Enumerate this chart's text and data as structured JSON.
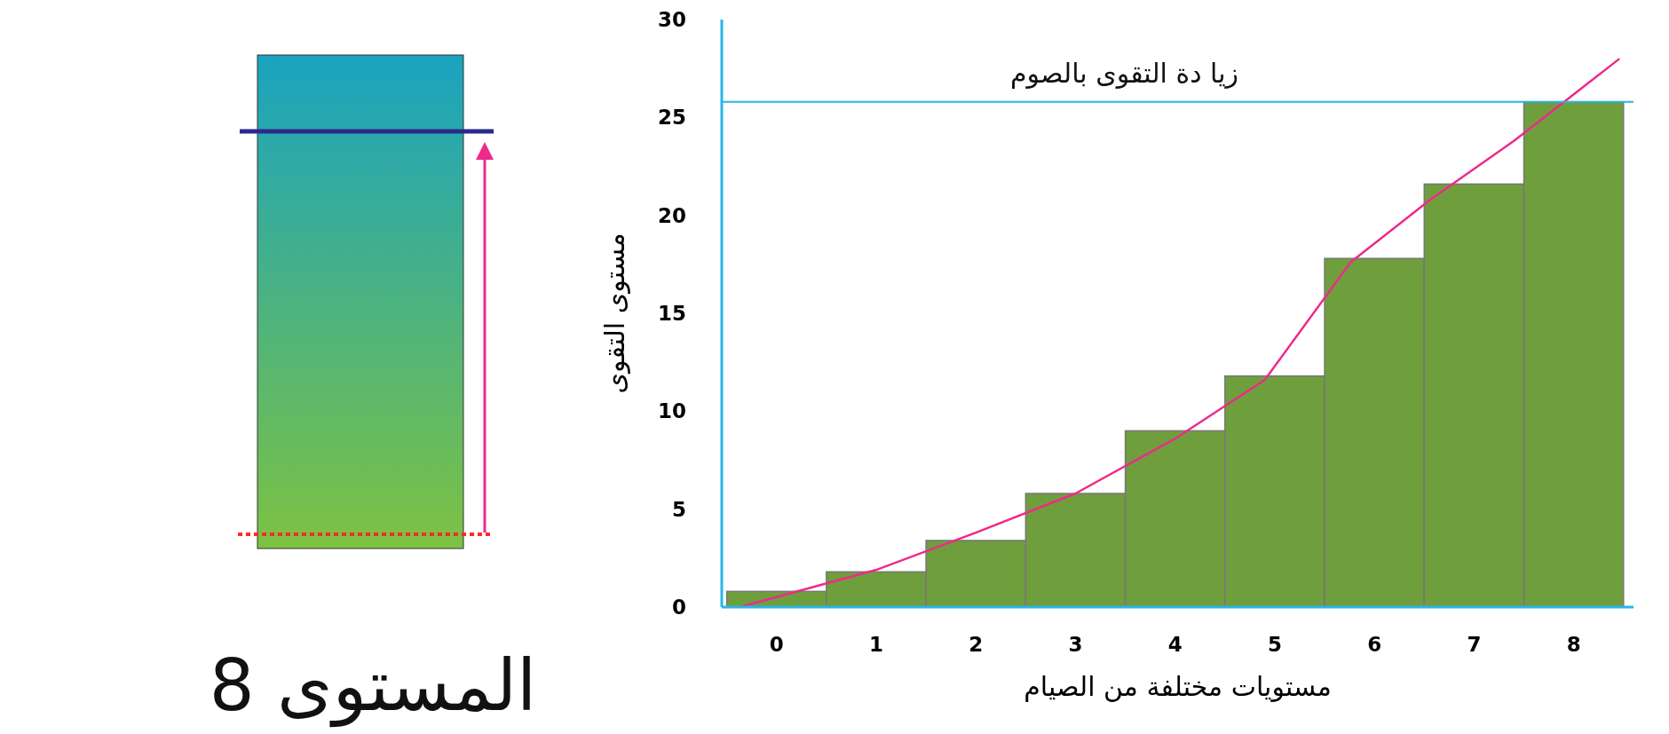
{
  "chart_data": {
    "type": "bar",
    "xlabel": "مستويات مختلفة من الصيام",
    "ylabel": "مستوى التقوى",
    "annotations": [
      "المستوى 8"
    ],
    "x": [
      0,
      1,
      2,
      3,
      4,
      5,
      6,
      7,
      8
    ],
    "xlim": [
      -0.55,
      8.6
    ],
    "xticks": [
      0,
      1,
      2,
      3,
      4,
      5,
      6,
      7,
      8
    ],
    "ylim": [
      0,
      30
    ],
    "yticks": [
      0,
      5,
      10,
      15,
      20,
      25,
      30
    ],
    "series": [
      {
        "color": "#6f9e3c",
        "values": [
          0.8,
          1.8,
          3.4,
          5.8,
          9.0,
          11.8,
          17.8,
          21.6,
          25.8
        ]
      },
      {
        "type": "line",
        "color": "#ee2a8a",
        "x": [
          -0.37,
          1.0,
          2.0,
          3.0,
          4.0,
          4.9,
          5.76,
          6.56,
          7.4,
          8.46
        ],
        "values": [
          0,
          1.9,
          3.8,
          5.8,
          8.6,
          11.6,
          17.6,
          20.8,
          23.8,
          28.0
        ]
      }
    ],
    "ref_lines": [
      {
        "axis": "y",
        "value": 25.8,
        "label": "زيا دة التقوى بالصوم",
        "color": "#29b6e8"
      }
    ],
    "grid": false,
    "marker": "none"
  }
}
